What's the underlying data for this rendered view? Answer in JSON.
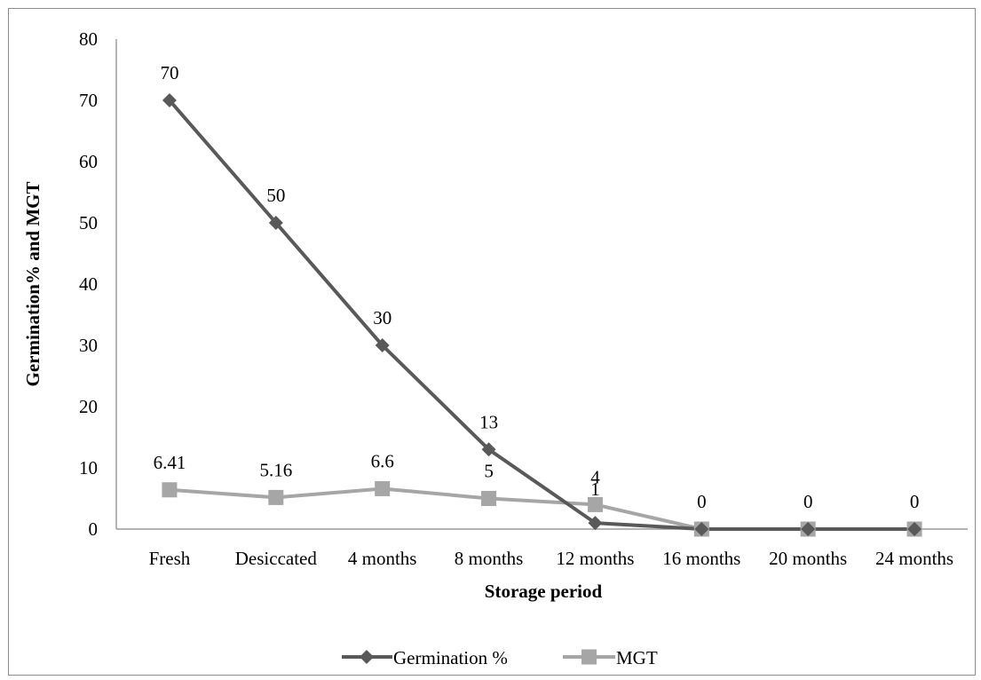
{
  "chart_data": {
    "type": "line",
    "categories": [
      "Fresh",
      "Desiccated",
      "4 months",
      "8 months",
      "12 months",
      "16 months",
      "20 months",
      "24 months"
    ],
    "series": [
      {
        "name": "Germination %",
        "values": [
          70,
          50,
          30,
          13,
          1,
          0,
          0,
          0
        ],
        "labels": [
          "70",
          "50",
          "30",
          "13",
          "1",
          "0",
          "0",
          "0"
        ],
        "color": "#595959",
        "marker": "diamond"
      },
      {
        "name": "MGT",
        "values": [
          6.41,
          5.16,
          6.6,
          5,
          4,
          0,
          0,
          0
        ],
        "labels": [
          "6.41",
          "5.16",
          "6.6",
          "5",
          "4",
          "",
          "",
          ""
        ],
        "color": "#a6a6a6",
        "marker": "square"
      }
    ],
    "ylabel": "Germination%  and MGT",
    "xlabel": "Storage period",
    "ylim": [
      0,
      80
    ],
    "yticks": [
      "0",
      "10",
      "20",
      "30",
      "40",
      "50",
      "60",
      "70",
      "80"
    ],
    "grid": false,
    "legend_position": "bottom"
  }
}
